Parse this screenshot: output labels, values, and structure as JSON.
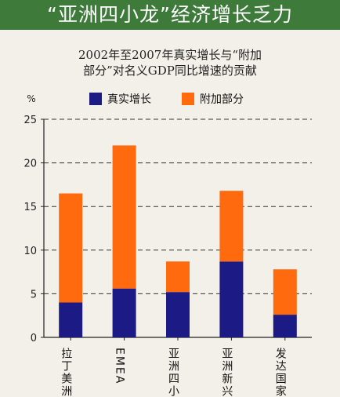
{
  "banner": {
    "title": "“亚洲四小龙”经济增长乏力"
  },
  "chart_data": {
    "type": "bar",
    "stacked": true,
    "title_lines": [
      "2002年至2007年真实增长与“附加",
      "部分”对名义GDP同比增速的贡献"
    ],
    "ylabel": "%",
    "ylim": [
      0,
      25
    ],
    "yticks": [
      0,
      5,
      10,
      15,
      20,
      25
    ],
    "grid": true,
    "legend_position": "top",
    "categories": [
      "拉丁美洲",
      "EMEA",
      "亚洲四小",
      "亚洲新兴市",
      "发达国家"
    ],
    "series": [
      {
        "name": "真实增长",
        "color": "#1c1a85",
        "values": [
          4.0,
          5.6,
          5.2,
          8.7,
          2.6
        ]
      },
      {
        "name": "附加部分",
        "color": "#ff6a0f",
        "values": [
          12.5,
          16.4,
          3.5,
          8.1,
          5.2
        ]
      }
    ]
  }
}
